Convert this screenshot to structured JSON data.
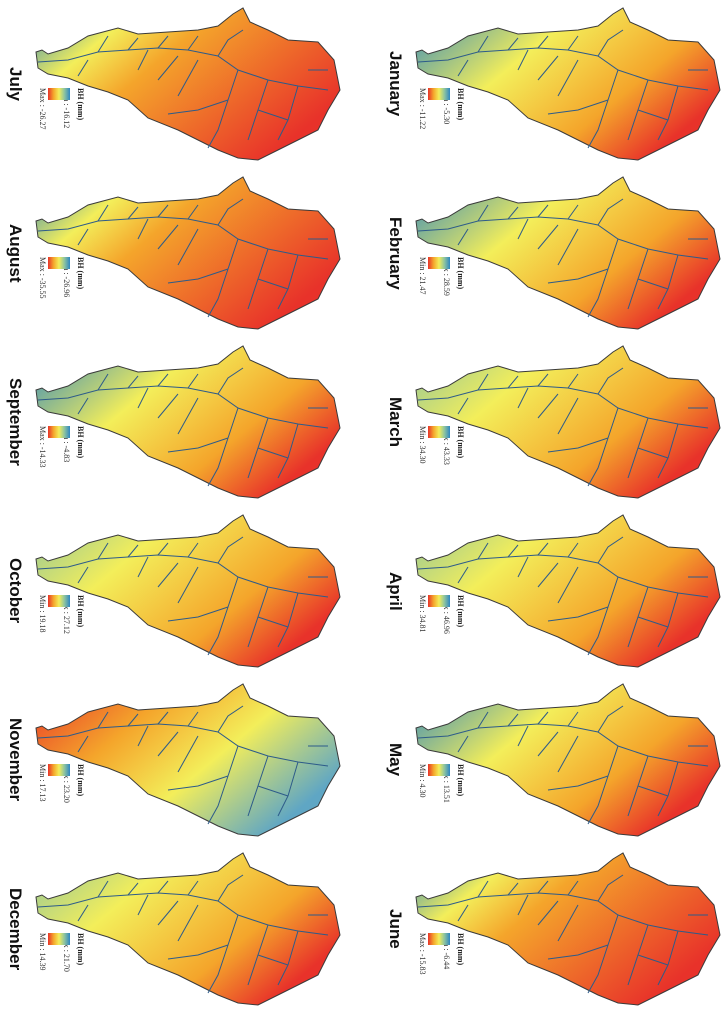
{
  "figure": {
    "legend_title": "BH (mm)",
    "colors": {
      "low_end": "#e8322a",
      "mid": "#f3ee5a",
      "high_end": "#2e86c1",
      "river": "#2d5b8a",
      "outline": "#3a3a3a"
    },
    "panels": [
      {
        "month": "January",
        "first_label": "Min : -5.30",
        "second_label": "Max : -11.22",
        "col": "right",
        "row": 0,
        "gradient": "blue-yellow-red"
      },
      {
        "month": "February",
        "first_label": "Max : 28.59",
        "second_label": "Min : 21.47",
        "col": "right",
        "row": 1,
        "gradient": "blue-yellow-red"
      },
      {
        "month": "March",
        "first_label": "Max : 43.33",
        "second_label": "Min : 34.30",
        "col": "right",
        "row": 2,
        "gradient": "yellow-orange"
      },
      {
        "month": "April",
        "first_label": "Max : 46.96",
        "second_label": "Min : 34.81",
        "col": "right",
        "row": 3,
        "gradient": "yellow-orange"
      },
      {
        "month": "May",
        "first_label": "Max : 13.51",
        "second_label": "Min : 4.30",
        "col": "right",
        "row": 4,
        "gradient": "blue-yellow-red"
      },
      {
        "month": "June",
        "first_label": "Min : -6.44",
        "second_label": "Max : -15.83",
        "col": "right",
        "row": 5,
        "gradient": "blue-red"
      },
      {
        "month": "July",
        "first_label": "Min : -16.12",
        "second_label": "Max : -26.27",
        "col": "left",
        "row": 0,
        "gradient": "blue-red"
      },
      {
        "month": "August",
        "first_label": "Min : -26.96",
        "second_label": "Max : -35.55",
        "col": "left",
        "row": 1,
        "gradient": "blue-red"
      },
      {
        "month": "September",
        "first_label": "Min : -4.83",
        "second_label": "Max : -14.33",
        "col": "left",
        "row": 2,
        "gradient": "blue-yellow-red"
      },
      {
        "month": "October",
        "first_label": "Max : 27.12",
        "second_label": "Min : 19.18",
        "col": "left",
        "row": 3,
        "gradient": "yellow-orange"
      },
      {
        "month": "November",
        "first_label": "Max : 23.20",
        "second_label": "Min : 17.13",
        "col": "left",
        "row": 4,
        "gradient": "red-yellow-blue"
      },
      {
        "month": "December",
        "first_label": "Max : 21.70",
        "second_label": "Min : 14.39",
        "col": "left",
        "row": 5,
        "gradient": "yellow-orange"
      }
    ]
  }
}
